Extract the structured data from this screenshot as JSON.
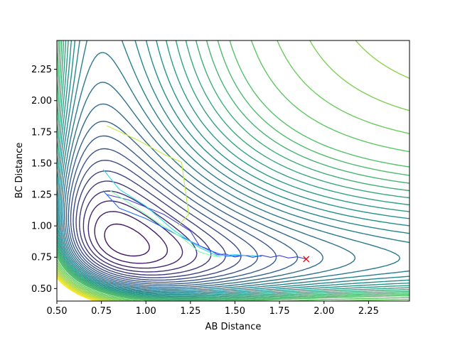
{
  "chart_data": {
    "type": "contour",
    "xlabel": "AB Distance",
    "ylabel": "BC Distance",
    "xlim": [
      0.5,
      2.48
    ],
    "ylim": [
      0.4,
      2.48
    ],
    "x_ticks": [
      "0.50",
      "0.75",
      "1.00",
      "1.25",
      "1.50",
      "1.75",
      "2.00",
      "2.25"
    ],
    "y_ticks": [
      "0.50",
      "0.75",
      "1.00",
      "1.25",
      "1.50",
      "1.75",
      "2.00",
      "2.25"
    ],
    "colormap": [
      "#440154",
      "#3b528b",
      "#21918c",
      "#5ec962",
      "#fde725"
    ],
    "end_point": {
      "x": 1.9,
      "y": 0.735,
      "marker": "x",
      "color": "#ff0000"
    },
    "trajectories": [
      {
        "color": "#3f3fd9",
        "points": [
          [
            1.9,
            0.735
          ],
          [
            1.85,
            0.745
          ],
          [
            1.8,
            0.752
          ],
          [
            1.75,
            0.756
          ],
          [
            1.7,
            0.757
          ],
          [
            1.65,
            0.757
          ],
          [
            1.6,
            0.757
          ],
          [
            1.55,
            0.758
          ],
          [
            1.5,
            0.76
          ],
          [
            1.45,
            0.767
          ],
          [
            1.4,
            0.78
          ],
          [
            1.36,
            0.8
          ],
          [
            1.3,
            0.85
          ],
          [
            1.25,
            0.95
          ],
          [
            1.1,
            1.1
          ],
          [
            0.9,
            1.2
          ],
          [
            0.78,
            1.25
          ]
        ]
      },
      {
        "color": "#1f6fff",
        "points": [
          [
            1.65,
            0.757
          ],
          [
            1.55,
            0.757
          ],
          [
            1.45,
            0.766
          ],
          [
            1.35,
            0.8
          ],
          [
            1.2,
            0.92
          ],
          [
            1.0,
            1.05
          ],
          [
            0.85,
            1.15
          ],
          [
            0.76,
            1.28
          ]
        ]
      },
      {
        "color": "#2fd9e3",
        "points": [
          [
            1.62,
            0.76
          ],
          [
            1.5,
            0.762
          ],
          [
            1.4,
            0.77
          ],
          [
            1.3,
            0.82
          ],
          [
            1.15,
            0.98
          ],
          [
            1.0,
            1.15
          ],
          [
            0.85,
            1.3
          ],
          [
            0.76,
            1.45
          ]
        ]
      },
      {
        "color": "#7fffa0",
        "points": [
          [
            1.42,
            0.75
          ],
          [
            1.36,
            0.76
          ],
          [
            1.3,
            0.8
          ],
          [
            1.2,
            0.9
          ],
          [
            1.05,
            1.05
          ],
          [
            0.9,
            1.18
          ],
          [
            0.8,
            1.28
          ]
        ]
      },
      {
        "color": "#bff03a",
        "points": [
          [
            0.78,
            1.8
          ],
          [
            0.95,
            1.68
          ],
          [
            1.1,
            1.58
          ],
          [
            1.2,
            1.5
          ],
          [
            1.24,
            1.1
          ],
          [
            1.18,
            1.0
          ]
        ]
      }
    ]
  }
}
